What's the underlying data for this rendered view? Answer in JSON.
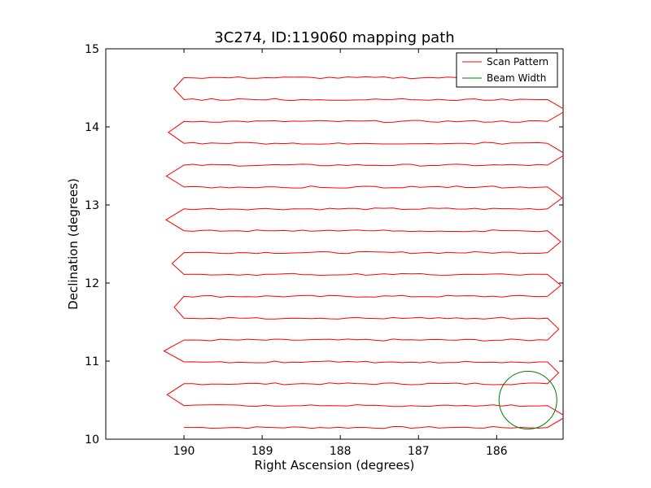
{
  "chart_data": {
    "type": "line",
    "title": "3C274, ID:119060 mapping path",
    "xlabel": "Right Ascension (degrees)",
    "ylabel": "Declination (degrees)",
    "xlim": [
      191.0,
      185.15
    ],
    "ylim": [
      10.0,
      15.0
    ],
    "x_inverted": true,
    "x_ticks": [
      190,
      189,
      188,
      187,
      186
    ],
    "y_ticks": [
      10,
      11,
      12,
      13,
      14,
      15
    ],
    "grid": false,
    "legend_position": "top-right",
    "colors": {
      "scan": "#ff0000",
      "beam": "#008000"
    },
    "series": [
      {
        "name": "Scan Pattern",
        "style": "raster",
        "west_ra": 190.0,
        "east_ra": 185.35,
        "rows_dec": [
          10.15,
          10.43,
          10.71,
          10.99,
          11.27,
          11.55,
          11.83,
          12.11,
          12.39,
          12.67,
          12.95,
          13.23,
          13.51,
          13.79,
          14.07,
          14.35,
          14.63
        ]
      },
      {
        "name": "Beam Width",
        "style": "circle",
        "center": [
          185.6,
          10.5
        ],
        "radius_dec": 0.37
      }
    ],
    "legend": [
      {
        "label": "Scan Pattern",
        "color": "#ff0000"
      },
      {
        "label": "Beam Width",
        "color": "#008000"
      }
    ]
  }
}
